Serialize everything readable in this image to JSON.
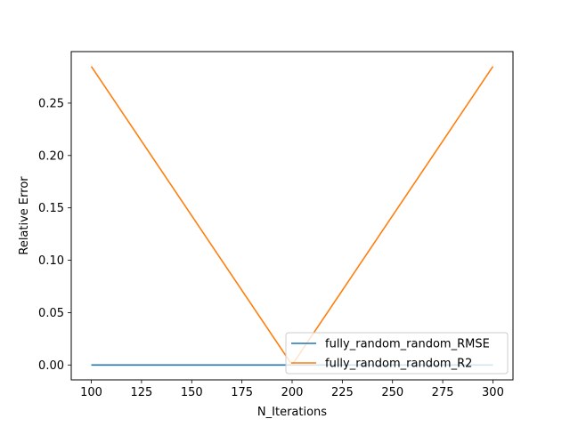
{
  "chart_data": {
    "type": "line",
    "xlabel": "N_Iterations",
    "ylabel": "Relative Error",
    "xlim": [
      90,
      310
    ],
    "ylim": [
      -0.0142,
      0.2992
    ],
    "x_ticks": [
      100,
      125,
      150,
      175,
      200,
      225,
      250,
      275,
      300
    ],
    "x_tick_labels": [
      "100",
      "125",
      "150",
      "175",
      "200",
      "225",
      "250",
      "275",
      "300"
    ],
    "y_ticks": [
      0.0,
      0.05,
      0.1,
      0.15,
      0.2,
      0.25
    ],
    "y_tick_labels": [
      "0.00",
      "0.05",
      "0.10",
      "0.15",
      "0.20",
      "0.25"
    ],
    "grid": false,
    "legend_position": "lower-right",
    "series": [
      {
        "name": "fully_random_random_RMSE",
        "color": "#1f77b4",
        "x": [
          100,
          200,
          300
        ],
        "y": [
          0.0,
          0.0,
          0.0
        ]
      },
      {
        "name": "fully_random_random_R2",
        "color": "#ff7f0e",
        "x": [
          100,
          200,
          300
        ],
        "y": [
          0.285,
          0.0,
          0.285
        ]
      }
    ]
  }
}
